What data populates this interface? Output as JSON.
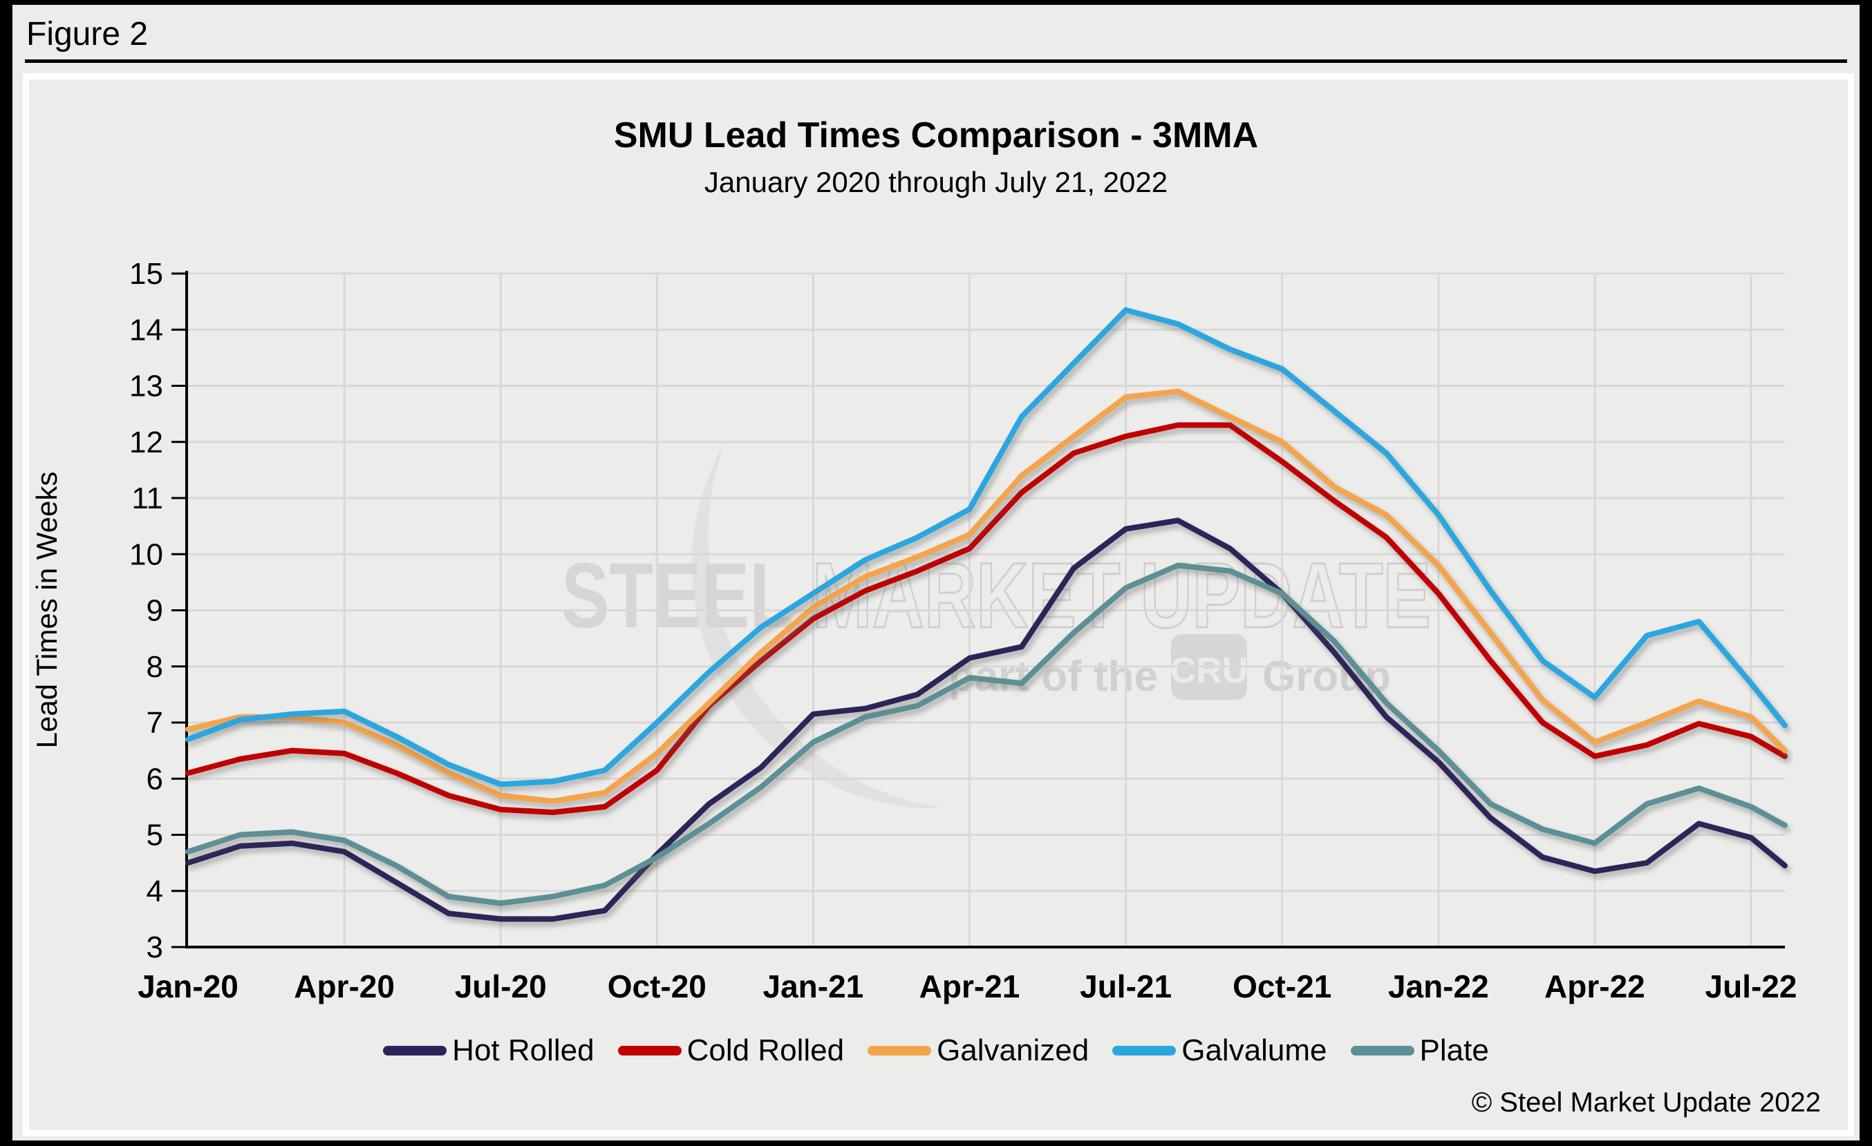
{
  "figure_label": "Figure 2",
  "copyright": "© Steel Market Update 2022",
  "watermark": {
    "line1_solid": "STEEL ",
    "line1_outline": "MARKET UPDATE",
    "line2_prefix": "part of the",
    "badge": "CRU",
    "line2_suffix": "Group"
  },
  "colors": {
    "background": "#ECECEA",
    "frame": "#000000",
    "axis": "#000000",
    "gridline": "#D9D8D6",
    "watermark_gray": "#D2D1CF",
    "hot_rolled": "#2B2559",
    "cold_rolled": "#C00000",
    "galvanized": "#F4A44C",
    "galvalume": "#2BA6DF",
    "plate": "#5C8F96"
  },
  "chart_data": {
    "type": "line",
    "title": "SMU Lead Times Comparison - 3MMA",
    "subtitle": "January 2020 through July 21, 2022",
    "xlabel": "",
    "ylabel": "Lead Times in Weeks",
    "ylim": [
      3,
      15
    ],
    "yticks": [
      3,
      4,
      5,
      6,
      7,
      8,
      9,
      10,
      11,
      12,
      13,
      14,
      15
    ],
    "grid": true,
    "legend_position": "bottom",
    "x_tick_positions": [
      0,
      3,
      6,
      9,
      12,
      15,
      18,
      21,
      24,
      27,
      30
    ],
    "x_tick_labels": [
      "Jan-20",
      "Apr-20",
      "Jul-20",
      "Oct-20",
      "Jan-21",
      "Apr-21",
      "Jul-21",
      "Oct-21",
      "Jan-22",
      "Apr-22",
      "Jul-22"
    ],
    "x_note": "x values are months since Jan-2020; last point is Jul 21, 2022",
    "x": [
      0,
      1,
      2,
      3,
      4,
      5,
      6,
      7,
      8,
      9,
      10,
      11,
      12,
      13,
      14,
      15,
      16,
      17,
      18,
      19,
      20,
      21,
      22,
      23,
      24,
      25,
      26,
      27,
      28,
      29,
      30,
      30.65
    ],
    "series": [
      {
        "name": "Hot Rolled",
        "color": "#2B2559",
        "values": [
          4.5,
          4.8,
          4.85,
          4.7,
          4.15,
          3.6,
          3.5,
          3.5,
          3.65,
          4.65,
          5.55,
          6.2,
          7.15,
          7.25,
          7.5,
          8.15,
          8.35,
          9.75,
          10.45,
          10.6,
          10.1,
          9.3,
          8.25,
          7.1,
          6.3,
          5.3,
          4.6,
          4.35,
          4.5,
          5.2,
          4.95,
          4.45
        ]
      },
      {
        "name": "Cold Rolled",
        "color": "#C00000",
        "values": [
          6.1,
          6.35,
          6.5,
          6.45,
          6.1,
          5.7,
          5.45,
          5.4,
          5.5,
          6.15,
          7.3,
          8.1,
          8.85,
          9.35,
          9.7,
          10.1,
          11.1,
          11.8,
          12.1,
          12.3,
          12.3,
          11.65,
          10.95,
          10.3,
          9.3,
          8.1,
          7.0,
          6.4,
          6.6,
          6.98,
          6.75,
          6.4
        ]
      },
      {
        "name": "Galvanized",
        "color": "#F4A44C",
        "values": [
          6.88,
          7.1,
          7.1,
          7.0,
          6.6,
          6.1,
          5.7,
          5.6,
          5.75,
          6.45,
          7.35,
          8.25,
          9.05,
          9.6,
          9.95,
          10.35,
          11.4,
          12.1,
          12.8,
          12.9,
          12.45,
          12.0,
          11.2,
          10.7,
          9.8,
          8.6,
          7.4,
          6.65,
          7.0,
          7.38,
          7.1,
          6.5
        ]
      },
      {
        "name": "Galvalume",
        "color": "#2BA6DF",
        "values": [
          6.7,
          7.05,
          7.15,
          7.2,
          6.75,
          6.25,
          5.9,
          5.95,
          6.15,
          7.0,
          7.9,
          8.7,
          9.3,
          9.9,
          10.3,
          10.8,
          12.45,
          13.4,
          14.35,
          14.1,
          13.65,
          13.3,
          12.55,
          11.8,
          10.7,
          9.35,
          8.1,
          7.45,
          8.55,
          8.8,
          7.7,
          6.95
        ]
      },
      {
        "name": "Plate",
        "color": "#5C8F96",
        "values": [
          4.7,
          5.0,
          5.05,
          4.9,
          4.45,
          3.9,
          3.78,
          3.9,
          4.1,
          4.6,
          5.2,
          5.85,
          6.65,
          7.1,
          7.3,
          7.8,
          7.7,
          8.6,
          9.4,
          9.8,
          9.7,
          9.3,
          8.45,
          7.35,
          6.5,
          5.55,
          5.1,
          4.85,
          5.55,
          5.83,
          5.5,
          5.17
        ]
      }
    ]
  }
}
